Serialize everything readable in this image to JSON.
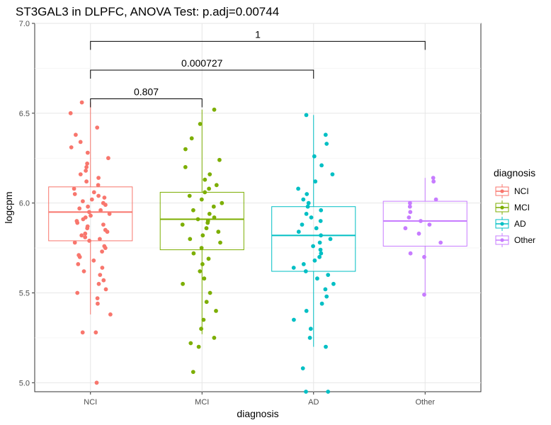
{
  "chart_data": {
    "type": "box",
    "title": "ST3GAL3 in DLPFC, ANOVA Test: p.adj=0.00744",
    "xlabel": "diagnosis",
    "ylabel": "logcpm",
    "categories": [
      "NCI",
      "MCI",
      "AD",
      "Other"
    ],
    "ylim": [
      4.95,
      7.0
    ],
    "yticks": [
      5.0,
      5.5,
      6.0,
      6.5,
      7.0
    ],
    "ytick_labels": [
      "5.0",
      "5.5",
      "6.0",
      "6.5",
      "7.0"
    ],
    "grid": true,
    "legend": {
      "title": "diagnosis",
      "position": "right",
      "entries": [
        "NCI",
        "MCI",
        "AD",
        "Other"
      ]
    },
    "colors": {
      "NCI": "#F8766D",
      "MCI": "#7CAE00",
      "AD": "#00BFC4",
      "Other": "#C77CFF"
    },
    "boxes": [
      {
        "name": "NCI",
        "q1": 5.79,
        "median": 5.95,
        "q3": 6.09,
        "whisker_low": 5.38,
        "whisker_high": 6.56
      },
      {
        "name": "MCI",
        "q1": 5.74,
        "median": 5.91,
        "q3": 6.06,
        "whisker_low": 5.27,
        "whisker_high": 6.52
      },
      {
        "name": "AD",
        "q1": 5.62,
        "median": 5.82,
        "q3": 5.98,
        "whisker_low": 5.2,
        "whisker_high": 6.49
      },
      {
        "name": "Other",
        "q1": 5.76,
        "median": 5.9,
        "q3": 6.01,
        "whisker_low": 5.49,
        "whisker_high": 6.14
      }
    ],
    "points": {
      "NCI": [
        5.0,
        5.28,
        5.28,
        5.38,
        5.44,
        5.47,
        5.5,
        5.52,
        5.55,
        5.57,
        5.6,
        5.62,
        5.64,
        5.66,
        5.68,
        5.7,
        5.71,
        5.73,
        5.75,
        5.76,
        5.78,
        5.79,
        5.8,
        5.81,
        5.82,
        5.83,
        5.84,
        5.85,
        5.86,
        5.87,
        5.88,
        5.89,
        5.9,
        5.91,
        5.92,
        5.93,
        5.94,
        5.95,
        5.96,
        5.97,
        5.98,
        5.99,
        6.0,
        6.01,
        6.02,
        6.03,
        6.04,
        6.05,
        6.06,
        6.08,
        6.1,
        6.12,
        6.14,
        6.16,
        6.18,
        6.2,
        6.22,
        6.25,
        6.28,
        6.31,
        6.34,
        6.38,
        6.42,
        6.5,
        6.56
      ],
      "MCI": [
        5.06,
        5.2,
        5.22,
        5.25,
        5.3,
        5.35,
        5.4,
        5.45,
        5.5,
        5.55,
        5.58,
        5.62,
        5.66,
        5.69,
        5.72,
        5.75,
        5.78,
        5.8,
        5.82,
        5.84,
        5.86,
        5.88,
        5.89,
        5.9,
        5.91,
        5.92,
        5.94,
        5.96,
        5.98,
        6.0,
        6.02,
        6.04,
        6.06,
        6.08,
        6.1,
        6.13,
        6.16,
        6.2,
        6.24,
        6.3,
        6.36,
        6.44,
        6.52
      ],
      "AD": [
        4.95,
        4.95,
        5.08,
        5.2,
        5.25,
        5.3,
        5.35,
        5.4,
        5.44,
        5.48,
        5.52,
        5.55,
        5.58,
        5.6,
        5.62,
        5.64,
        5.66,
        5.68,
        5.7,
        5.72,
        5.74,
        5.76,
        5.78,
        5.8,
        5.82,
        5.84,
        5.86,
        5.88,
        5.9,
        5.92,
        5.94,
        5.96,
        5.98,
        6.0,
        6.02,
        6.05,
        6.08,
        6.12,
        6.16,
        6.21,
        6.26,
        6.33,
        6.38,
        6.49
      ],
      "Other": [
        5.49,
        5.7,
        5.72,
        5.78,
        5.83,
        5.86,
        5.88,
        5.9,
        5.92,
        5.95,
        5.98,
        6.0,
        6.02,
        6.12,
        6.14
      ]
    },
    "comparisons": [
      {
        "from": "NCI",
        "to": "MCI",
        "label": "0.807",
        "y": 6.58
      },
      {
        "from": "NCI",
        "to": "AD",
        "label": "0.000727",
        "y": 6.74
      },
      {
        "from": "NCI",
        "to": "Other",
        "label": "1",
        "y": 6.9
      }
    ]
  }
}
